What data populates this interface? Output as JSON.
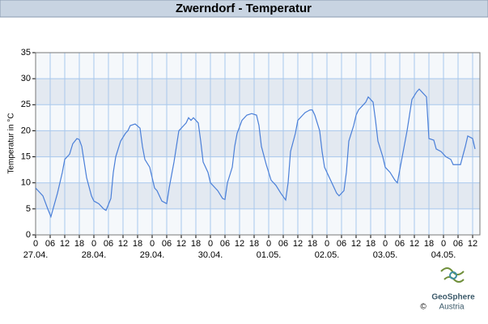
{
  "chart_data": {
    "type": "line",
    "title": "Zwerndorf - Temperatur",
    "y_label": "Temperatur in °C",
    "xlim": [
      0,
      183
    ],
    "ylim": [
      0,
      35
    ],
    "yticks": [
      0,
      5,
      10,
      15,
      20,
      25,
      30,
      35
    ],
    "xticks": [
      0,
      {
        "value": 6,
        "label": "06"
      },
      12,
      18,
      {
        "value": 24,
        "label": "0"
      },
      {
        "value": 30,
        "label": "06"
      },
      {
        "value": 36,
        "label": "12"
      },
      {
        "value": 42,
        "label": "18"
      },
      {
        "value": 48,
        "label": "0"
      },
      {
        "value": 54,
        "label": "06"
      },
      {
        "value": 60,
        "label": "12"
      },
      {
        "value": 66,
        "label": "18"
      },
      {
        "value": 72,
        "label": "0"
      },
      {
        "value": 78,
        "label": "06"
      },
      {
        "value": 84,
        "label": "12"
      },
      {
        "value": 90,
        "label": "18"
      },
      {
        "value": 96,
        "label": "0"
      },
      {
        "value": 102,
        "label": "06"
      },
      {
        "value": 108,
        "label": "12"
      },
      {
        "value": 114,
        "label": "18"
      },
      {
        "value": 120,
        "label": "0"
      },
      {
        "value": 126,
        "label": "06"
      },
      {
        "value": 132,
        "label": "12"
      },
      {
        "value": 138,
        "label": "18"
      },
      {
        "value": 144,
        "label": "0"
      },
      {
        "value": 150,
        "label": "06"
      },
      {
        "value": 156,
        "label": "12"
      },
      {
        "value": 162,
        "label": "18"
      },
      {
        "value": 168,
        "label": "0"
      },
      {
        "value": 174,
        "label": "06"
      },
      {
        "value": 180,
        "label": "12"
      }
    ],
    "date_labels": [
      {
        "value": 0,
        "label": "27.04."
      },
      {
        "value": 24,
        "label": "28.04."
      },
      {
        "value": 48,
        "label": "29.04."
      },
      {
        "value": 72,
        "label": "30.04."
      },
      {
        "value": 96,
        "label": "01.05."
      },
      {
        "value": 120,
        "label": "02.05."
      },
      {
        "value": 144,
        "label": "03.05."
      },
      {
        "value": 168,
        "label": "04.05."
      }
    ],
    "grid": true,
    "series": [
      {
        "color": "#4a7fd8",
        "x": [
          0,
          3,
          5,
          6.3,
          9,
          11,
          12,
          14,
          15.3,
          17,
          18,
          19,
          20,
          21,
          23,
          24,
          26,
          28,
          29,
          31,
          32,
          33,
          35,
          37,
          38,
          39,
          41,
          43,
          44,
          45,
          47,
          49,
          50,
          52,
          54,
          55,
          57,
          58,
          59,
          61,
          62,
          63,
          64,
          65,
          67,
          68,
          69,
          71,
          72,
          74,
          75,
          77,
          78,
          79,
          81,
          82,
          83,
          85,
          87,
          89,
          91,
          92,
          93,
          95,
          97,
          99,
          101,
          103,
          104,
          105,
          107,
          108,
          110,
          111,
          113,
          114,
          115,
          117,
          118,
          119,
          121,
          123,
          124,
          125,
          127,
          128,
          129,
          131,
          132,
          133,
          135,
          136,
          137,
          139,
          140,
          141,
          143,
          144,
          146,
          148,
          149,
          151,
          153,
          154,
          155,
          157,
          158,
          159,
          161,
          162,
          164,
          165,
          167,
          169,
          171,
          172,
          173,
          175,
          177,
          178,
          180,
          181
        ],
        "values": [
          9,
          7.5,
          5,
          3.5,
          8,
          12,
          14.5,
          15.5,
          17.5,
          18.5,
          18.3,
          17,
          14,
          11,
          7.5,
          6.5,
          6,
          5,
          4.7,
          7,
          12,
          15,
          18,
          19.5,
          20,
          21,
          21.3,
          20.5,
          17,
          14.5,
          13,
          9,
          8.5,
          6.5,
          6,
          9,
          14,
          17,
          20,
          21,
          21.5,
          22.5,
          22,
          22.5,
          21.5,
          18,
          14,
          12,
          10,
          9,
          8.5,
          7,
          6.8,
          10,
          13,
          17,
          19.5,
          22,
          23,
          23.3,
          23,
          21,
          17,
          13.5,
          10.5,
          9.5,
          8,
          6.7,
          10,
          16,
          19.5,
          22,
          23,
          23.5,
          24,
          24,
          23,
          20,
          16,
          13,
          11,
          9,
          8,
          7.5,
          8.5,
          12,
          18,
          21,
          23,
          24,
          25,
          25.5,
          26.5,
          25.5,
          22,
          18,
          15,
          13,
          12,
          10.5,
          10,
          15,
          20,
          23,
          26,
          27.5,
          28,
          27.5,
          26.5,
          18.5,
          18.2,
          16.5,
          16,
          15,
          14.5,
          13.5,
          13.5,
          13.5,
          17,
          19,
          18.5,
          16.5
        ]
      }
    ],
    "logo": {
      "name": "GeoSphere",
      "sub": "Austria",
      "copyright": "©"
    }
  }
}
